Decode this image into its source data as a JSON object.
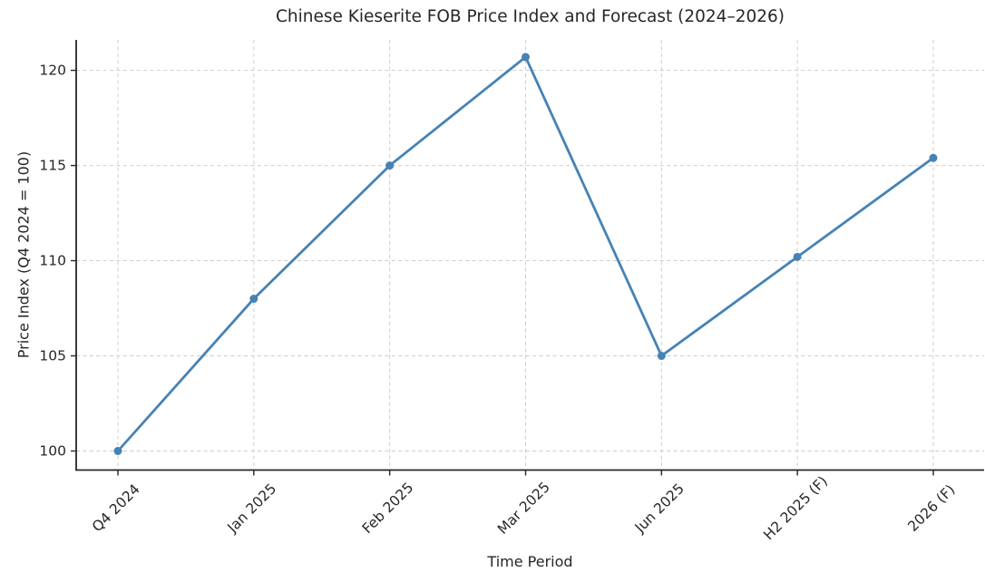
{
  "chart_data": {
    "type": "line",
    "title": "Chinese Kieserite FOB Price Index and Forecast (2024–2026)",
    "xlabel": "Time Period",
    "ylabel": "Price Index (Q4 2024 = 100)",
    "categories": [
      "Q4 2024",
      "Jan 2025",
      "Feb 2025",
      "Mar 2025",
      "Jun 2025",
      "H2 2025 (F)",
      "2026 (F)"
    ],
    "series": [
      {
        "name": "Price Index",
        "values": [
          100.0,
          108.0,
          115.0,
          120.7,
          105.0,
          110.2,
          115.4
        ]
      }
    ],
    "yticks": [
      100,
      105,
      110,
      115,
      120
    ],
    "ylim": [
      99.0,
      121.6
    ],
    "grid": true,
    "grid_style": "dashed",
    "legend_position": "none",
    "colors": {
      "line": "#4682b4",
      "marker": "#4682b4",
      "grid": "#cdcdcd",
      "spine": "#262626",
      "text": "#262626",
      "background": "#ffffff"
    }
  }
}
